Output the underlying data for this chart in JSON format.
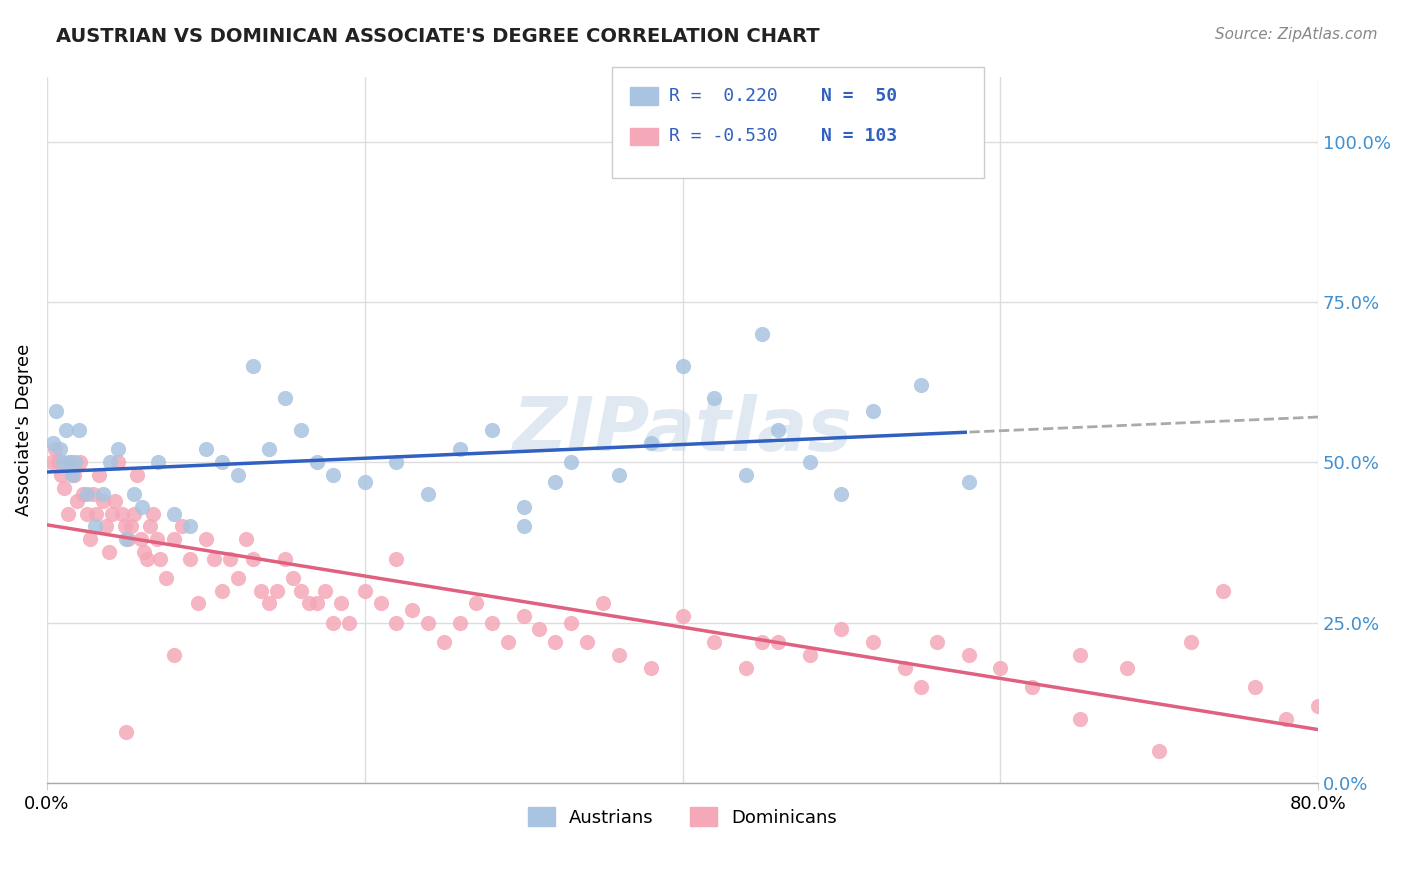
{
  "title": "AUSTRIAN VS DOMINICAN ASSOCIATE'S DEGREE CORRELATION CHART",
  "source": "Source: ZipAtlas.com",
  "ylabel": "Associate's Degree",
  "ytick_values": [
    0.0,
    25.0,
    50.0,
    75.0,
    100.0
  ],
  "legend_label1": "Austrians",
  "legend_label2": "Dominicans",
  "legend_R1": "R =  0.220",
  "legend_N1": "N =  50",
  "legend_R2": "R = -0.530",
  "legend_N2": "N = 103",
  "austrian_color": "#a8c4e0",
  "dominican_color": "#f4a8b8",
  "austrian_line_color": "#3060c0",
  "dominican_line_color": "#e06080",
  "dashed_line_color": "#aaaaaa",
  "watermark": "ZIPatlas",
  "background_color": "#ffffff",
  "xlim": [
    0.0,
    80.0
  ],
  "ylim": [
    0.0,
    110.0
  ],
  "austrian_x": [
    0.4,
    0.6,
    0.8,
    1.0,
    1.2,
    1.4,
    1.6,
    1.8,
    2.0,
    2.5,
    3.0,
    3.5,
    4.0,
    4.5,
    5.0,
    5.5,
    6.0,
    7.0,
    8.0,
    9.0,
    10.0,
    11.0,
    12.0,
    13.0,
    14.0,
    15.0,
    16.0,
    17.0,
    18.0,
    20.0,
    22.0,
    24.0,
    26.0,
    28.0,
    30.0,
    33.0,
    36.0,
    40.0,
    45.0,
    50.0,
    30.0,
    32.0,
    38.0,
    42.0,
    44.0,
    46.0,
    48.0,
    52.0,
    55.0,
    58.0
  ],
  "austrian_y": [
    53,
    58,
    52,
    50,
    55,
    50,
    48,
    50,
    55,
    45,
    40,
    45,
    50,
    52,
    38,
    45,
    43,
    50,
    42,
    40,
    52,
    50,
    48,
    65,
    52,
    60,
    55,
    50,
    48,
    47,
    50,
    45,
    52,
    55,
    40,
    50,
    48,
    65,
    70,
    45,
    43,
    47,
    53,
    60,
    48,
    55,
    50,
    58,
    62,
    47
  ],
  "dominican_x": [
    0.3,
    0.5,
    0.7,
    0.9,
    1.1,
    1.3,
    1.5,
    1.7,
    1.9,
    2.1,
    2.3,
    2.5,
    2.7,
    2.9,
    3.1,
    3.3,
    3.5,
    3.7,
    3.9,
    4.1,
    4.3,
    4.5,
    4.7,
    4.9,
    5.1,
    5.3,
    5.5,
    5.7,
    5.9,
    6.1,
    6.3,
    6.5,
    6.7,
    6.9,
    7.1,
    7.5,
    8.0,
    8.5,
    9.0,
    9.5,
    10.0,
    10.5,
    11.0,
    11.5,
    12.0,
    12.5,
    13.0,
    13.5,
    14.0,
    14.5,
    15.0,
    15.5,
    16.0,
    16.5,
    17.0,
    17.5,
    18.0,
    18.5,
    19.0,
    20.0,
    21.0,
    22.0,
    23.0,
    24.0,
    25.0,
    26.0,
    27.0,
    28.0,
    29.0,
    30.0,
    31.0,
    32.0,
    33.0,
    34.0,
    36.0,
    38.0,
    40.0,
    42.0,
    44.0,
    46.0,
    48.0,
    50.0,
    52.0,
    54.0,
    56.0,
    58.0,
    60.0,
    62.0,
    65.0,
    68.0,
    70.0,
    72.0,
    74.0,
    76.0,
    78.0,
    80.0,
    5.0,
    8.0,
    22.0,
    35.0,
    45.0,
    55.0,
    65.0
  ],
  "dominican_y": [
    50,
    52,
    50,
    48,
    46,
    42,
    50,
    48,
    44,
    50,
    45,
    42,
    38,
    45,
    42,
    48,
    44,
    40,
    36,
    42,
    44,
    50,
    42,
    40,
    38,
    40,
    42,
    48,
    38,
    36,
    35,
    40,
    42,
    38,
    35,
    32,
    38,
    40,
    35,
    28,
    38,
    35,
    30,
    35,
    32,
    38,
    35,
    30,
    28,
    30,
    35,
    32,
    30,
    28,
    28,
    30,
    25,
    28,
    25,
    30,
    28,
    25,
    27,
    25,
    22,
    25,
    28,
    25,
    22,
    26,
    24,
    22,
    25,
    22,
    20,
    18,
    26,
    22,
    18,
    22,
    20,
    24,
    22,
    18,
    22,
    20,
    18,
    15,
    20,
    18,
    5,
    22,
    30,
    15,
    10,
    12,
    8,
    20,
    35,
    28,
    22,
    15,
    10
  ]
}
